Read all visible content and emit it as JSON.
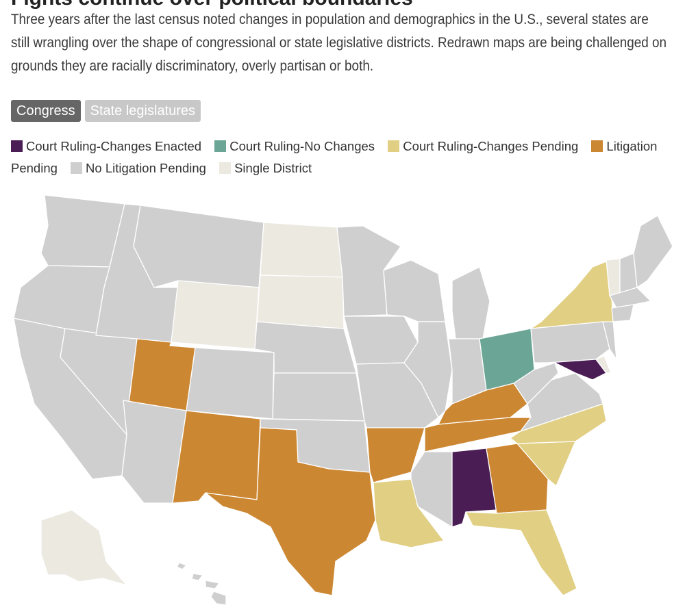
{
  "headline": "Fights continue over political boundaries",
  "intro": "Three years after the last census noted changes in population and demographics in the U.S., several states are still wrangling over the shape of congressional or state legislative districts. Redrawn maps are being challenged on grounds they are racially discriminatory, overly partisan or both.",
  "tabs": [
    {
      "label": "Congress",
      "active": true
    },
    {
      "label": "State legislatures",
      "active": false
    }
  ],
  "legend": [
    {
      "label": "Court Ruling-Changes Enacted",
      "color": "#4b1d55"
    },
    {
      "label": "Court Ruling-No Changes",
      "color": "#6aa595"
    },
    {
      "label": "Court Ruling-Changes Pending",
      "color": "#e1cf84"
    },
    {
      "label": "Litigation Pending",
      "color": "#cc8732"
    },
    {
      "label": "No Litigation Pending",
      "color": "#cfcfcf"
    },
    {
      "label": "Single District",
      "color": "#ece9e1"
    }
  ],
  "states": {
    "AL": "Court Ruling-Changes Enacted",
    "MD": "Court Ruling-Changes Enacted",
    "OH": "Court Ruling-No Changes",
    "NY": "Court Ruling-Changes Pending",
    "NC": "Court Ruling-Changes Pending",
    "SC": "Court Ruling-Changes Pending",
    "LA": "Court Ruling-Changes Pending",
    "FL": "Court Ruling-Changes Pending",
    "UT": "Litigation Pending",
    "NM": "Litigation Pending",
    "TX": "Litigation Pending",
    "AR": "Litigation Pending",
    "KY": "Litigation Pending",
    "TN": "Litigation Pending",
    "GA": "Litigation Pending",
    "AK": "Single District",
    "WY": "Single District",
    "ND": "Single District",
    "SD": "Single District",
    "VT": "Single District",
    "DE": "Single District"
  }
}
